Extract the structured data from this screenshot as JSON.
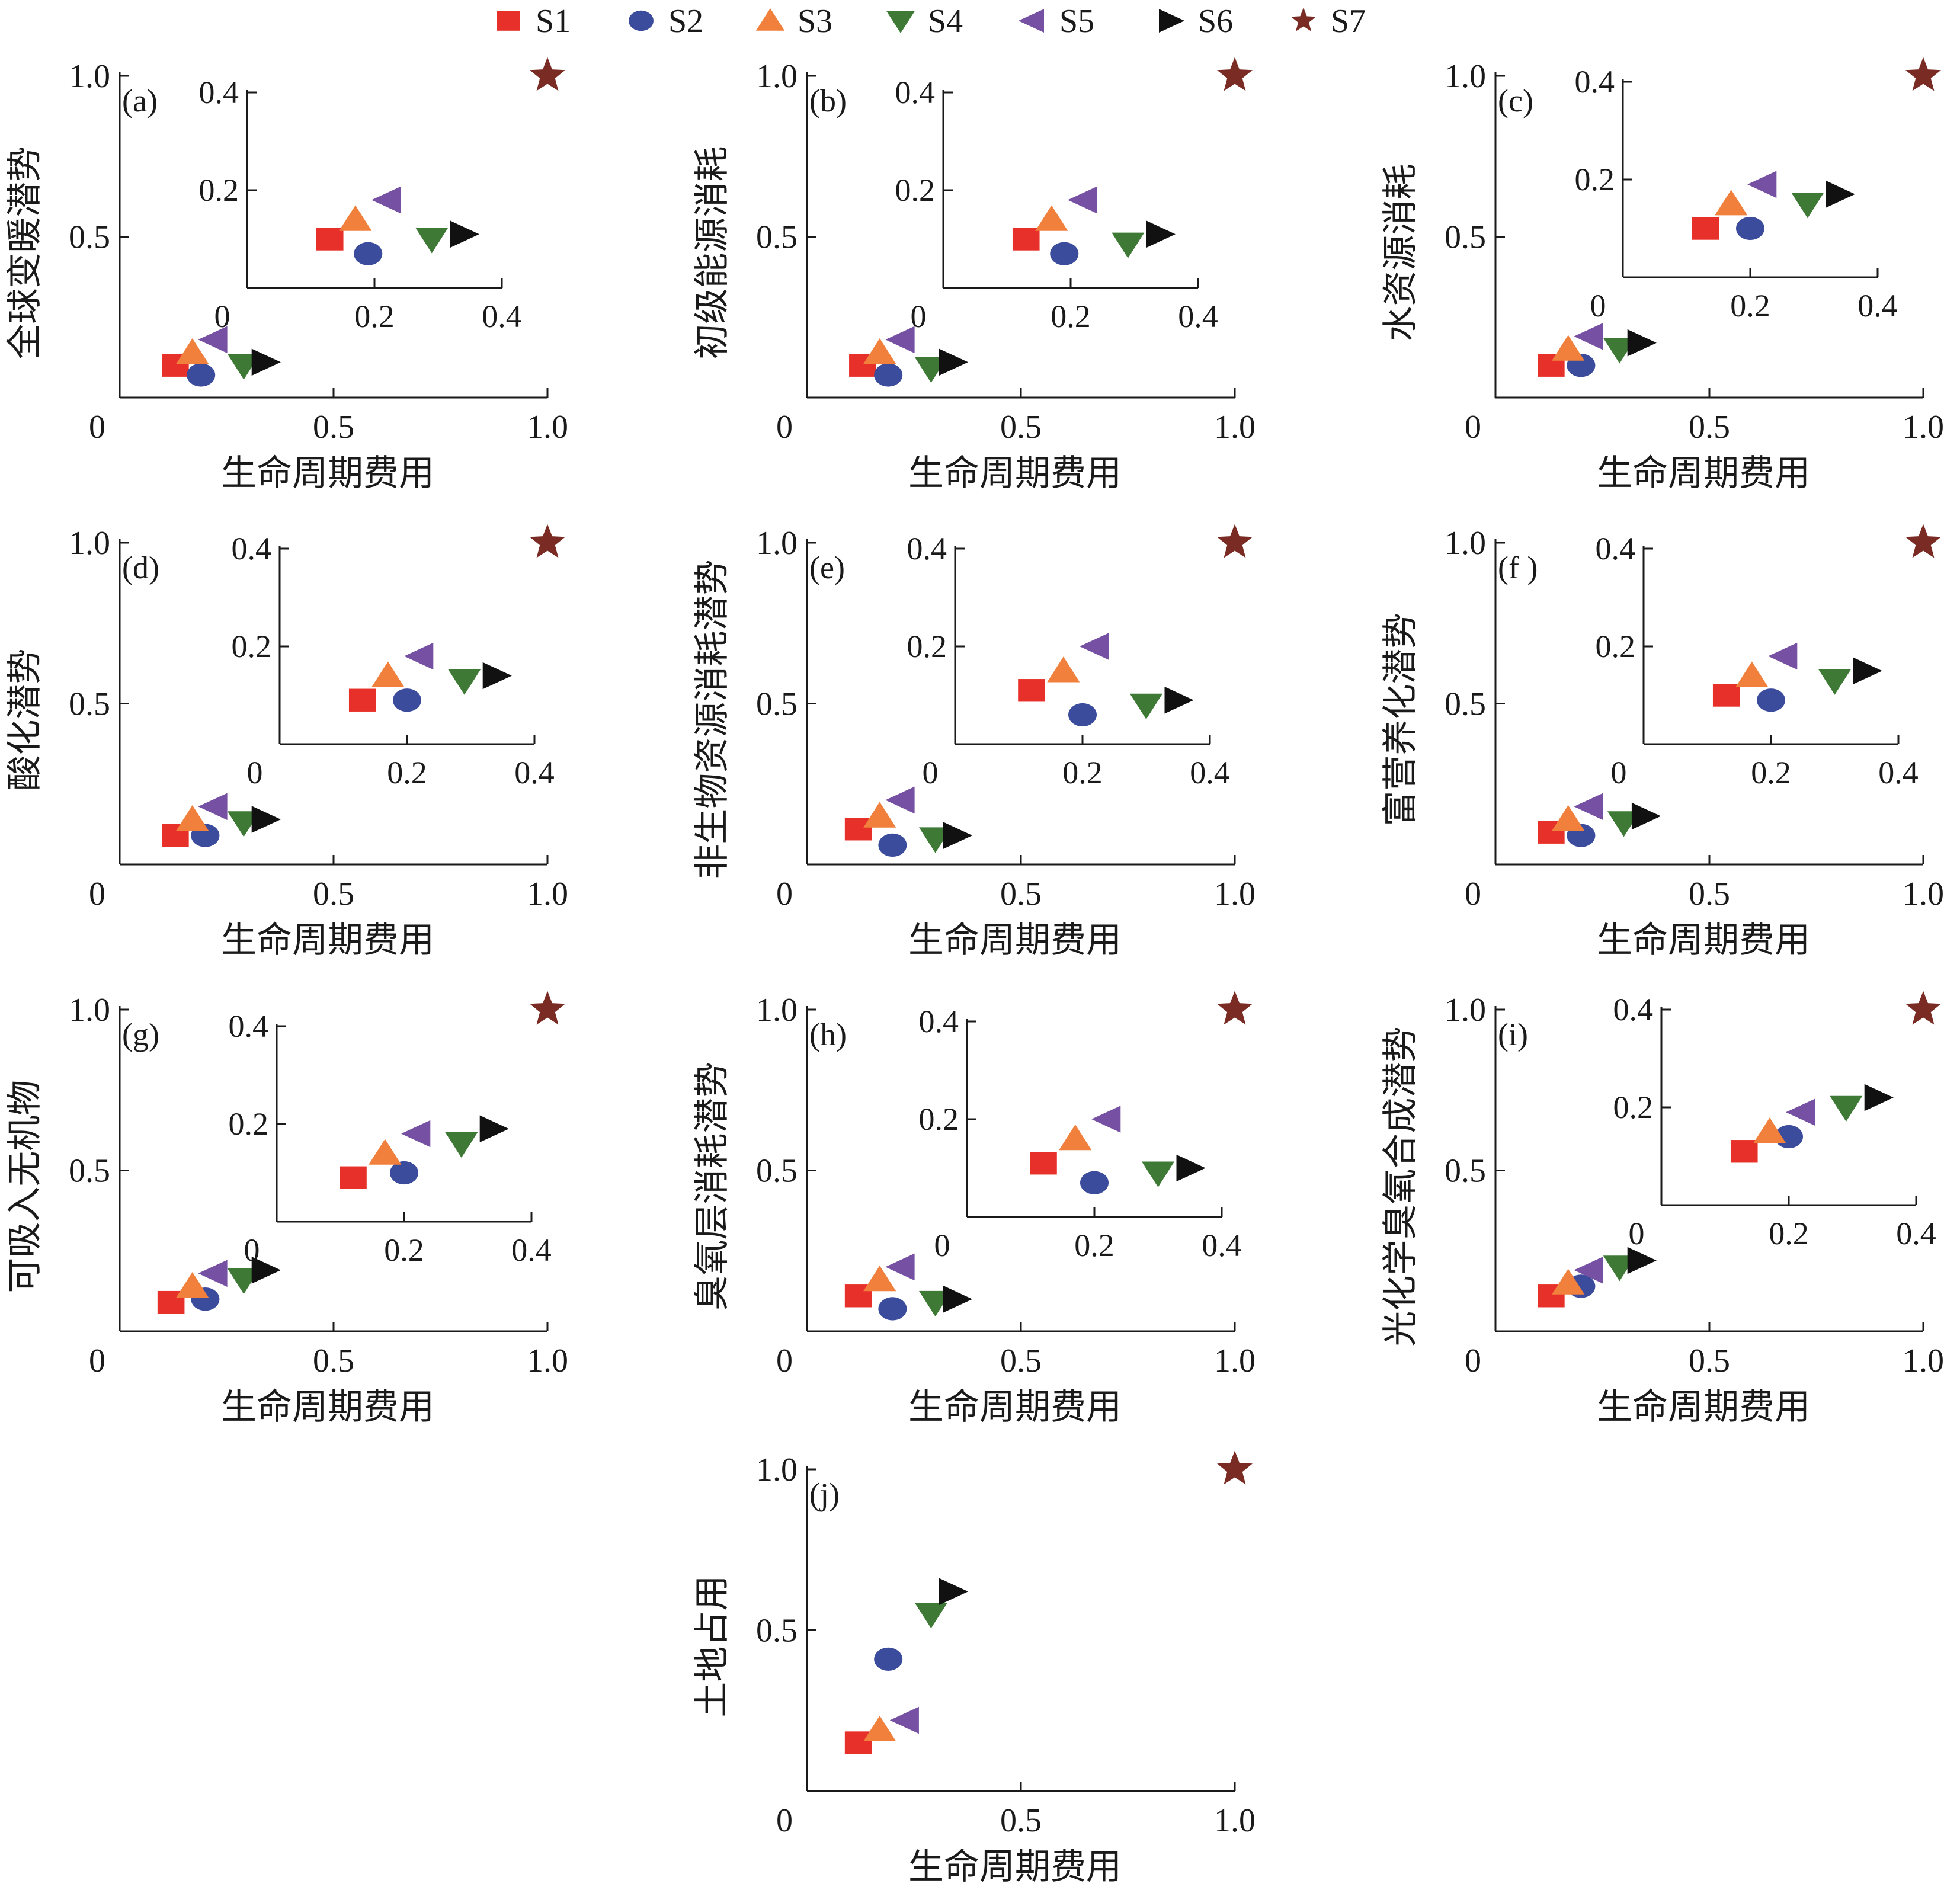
{
  "figure": {
    "series_styles": [
      {
        "name": "S1",
        "marker": "square",
        "color": "#e8302a"
      },
      {
        "name": "S2",
        "marker": "circle",
        "color": "#3c4c9c"
      },
      {
        "name": "S3",
        "marker": "triangle-up",
        "color": "#f0803c"
      },
      {
        "name": "S4",
        "marker": "triangle-down",
        "color": "#3e7a36"
      },
      {
        "name": "S5",
        "marker": "triangle-left",
        "color": "#7650a2"
      },
      {
        "name": "S6",
        "marker": "triangle-right",
        "color": "#111111"
      },
      {
        "name": "S7",
        "marker": "star",
        "color": "#7a2c24"
      }
    ],
    "legend_position": "top-center",
    "axis_color": "#1a1a1a"
  },
  "chart_data": [
    {
      "id": "a",
      "type": "scatter",
      "panel_label": "(a)",
      "xlabel": "生命周期费用",
      "ylabel": "全球变暖潜势",
      "xlim": [
        0,
        1.0
      ],
      "ylim": [
        0,
        1.0
      ],
      "xticks": [
        "0",
        "0.5",
        "1.0"
      ],
      "yticks": [
        "0.5",
        "1.0"
      ],
      "points": [
        {
          "series": "S1",
          "x": 0.13,
          "y": 0.1
        },
        {
          "series": "S2",
          "x": 0.19,
          "y": 0.07
        },
        {
          "series": "S3",
          "x": 0.17,
          "y": 0.14
        },
        {
          "series": "S4",
          "x": 0.29,
          "y": 0.1
        },
        {
          "series": "S5",
          "x": 0.22,
          "y": 0.18
        },
        {
          "series": "S6",
          "x": 0.34,
          "y": 0.11
        },
        {
          "series": "S7",
          "x": 1.0,
          "y": 1.0
        }
      ],
      "inset": {
        "xlim": [
          0,
          0.4
        ],
        "ylim": [
          0,
          0.4
        ],
        "xticks": [
          "0",
          "0.2",
          "0.4"
        ],
        "yticks": [
          "0.2",
          "0.4"
        ]
      }
    },
    {
      "id": "b",
      "type": "scatter",
      "panel_label": "(b)",
      "xlabel": "生命周期费用",
      "ylabel": "初级能源消耗",
      "xlim": [
        0,
        1.0
      ],
      "ylim": [
        0,
        1.0
      ],
      "xticks": [
        "0",
        "0.5",
        "1.0"
      ],
      "yticks": [
        "0.5",
        "1.0"
      ],
      "points": [
        {
          "series": "S1",
          "x": 0.13,
          "y": 0.1
        },
        {
          "series": "S2",
          "x": 0.19,
          "y": 0.07
        },
        {
          "series": "S3",
          "x": 0.17,
          "y": 0.14
        },
        {
          "series": "S4",
          "x": 0.29,
          "y": 0.09
        },
        {
          "series": "S5",
          "x": 0.22,
          "y": 0.18
        },
        {
          "series": "S6",
          "x": 0.34,
          "y": 0.11
        },
        {
          "series": "S7",
          "x": 1.0,
          "y": 1.0
        }
      ],
      "inset": {
        "xlim": [
          0,
          0.4
        ],
        "ylim": [
          0,
          0.4
        ],
        "xticks": [
          "0",
          "0.2",
          "0.4"
        ],
        "yticks": [
          "0.2",
          "0.4"
        ]
      }
    },
    {
      "id": "c",
      "type": "scatter",
      "panel_label": "(c)",
      "xlabel": "生命周期费用",
      "ylabel": "水资源消耗",
      "xlim": [
        0,
        1.0
      ],
      "ylim": [
        0,
        1.0
      ],
      "xticks": [
        "0",
        "0.5",
        "1.0"
      ],
      "yticks": [
        "0.5",
        "1.0"
      ],
      "points": [
        {
          "series": "S1",
          "x": 0.13,
          "y": 0.1
        },
        {
          "series": "S2",
          "x": 0.2,
          "y": 0.1
        },
        {
          "series": "S3",
          "x": 0.17,
          "y": 0.15
        },
        {
          "series": "S4",
          "x": 0.29,
          "y": 0.15
        },
        {
          "series": "S5",
          "x": 0.22,
          "y": 0.19
        },
        {
          "series": "S6",
          "x": 0.34,
          "y": 0.17
        },
        {
          "series": "S7",
          "x": 1.0,
          "y": 1.0
        }
      ],
      "inset": {
        "xlim": [
          0,
          0.4
        ],
        "ylim": [
          0,
          0.4
        ],
        "xticks": [
          "0",
          "0.2",
          "0.4"
        ],
        "yticks": [
          "0.2",
          "0.4"
        ]
      }
    },
    {
      "id": "d",
      "type": "scatter",
      "panel_label": "(d)",
      "xlabel": "生命周期费用",
      "ylabel": "酸化潜势",
      "xlim": [
        0,
        1.0
      ],
      "ylim": [
        0,
        1.0
      ],
      "xticks": [
        "0",
        "0.5",
        "1.0"
      ],
      "yticks": [
        "0.5",
        "1.0"
      ],
      "points": [
        {
          "series": "S1",
          "x": 0.13,
          "y": 0.09
        },
        {
          "series": "S2",
          "x": 0.2,
          "y": 0.09
        },
        {
          "series": "S3",
          "x": 0.17,
          "y": 0.14
        },
        {
          "series": "S4",
          "x": 0.29,
          "y": 0.13
        },
        {
          "series": "S5",
          "x": 0.22,
          "y": 0.18
        },
        {
          "series": "S6",
          "x": 0.34,
          "y": 0.14
        },
        {
          "series": "S7",
          "x": 1.0,
          "y": 1.0
        }
      ],
      "inset": {
        "xlim": [
          0,
          0.4
        ],
        "ylim": [
          0,
          0.4
        ],
        "xticks": [
          "0",
          "0.2",
          "0.4"
        ],
        "yticks": [
          "0.2",
          "0.4"
        ]
      }
    },
    {
      "id": "e",
      "type": "scatter",
      "panel_label": "(e)",
      "xlabel": "生命周期费用",
      "ylabel": "非生物资源消耗潜势",
      "xlim": [
        0,
        1.0
      ],
      "ylim": [
        0,
        1.0
      ],
      "xticks": [
        "0",
        "0.5",
        "1.0"
      ],
      "yticks": [
        "0.5",
        "1.0"
      ],
      "points": [
        {
          "series": "S1",
          "x": 0.12,
          "y": 0.11
        },
        {
          "series": "S2",
          "x": 0.2,
          "y": 0.06
        },
        {
          "series": "S3",
          "x": 0.17,
          "y": 0.15
        },
        {
          "series": "S4",
          "x": 0.3,
          "y": 0.08
        },
        {
          "series": "S5",
          "x": 0.22,
          "y": 0.2
        },
        {
          "series": "S6",
          "x": 0.35,
          "y": 0.09
        },
        {
          "series": "S7",
          "x": 1.0,
          "y": 1.0
        }
      ],
      "inset": {
        "xlim": [
          0,
          0.4
        ],
        "ylim": [
          0,
          0.4
        ],
        "xticks": [
          "0",
          "0.2",
          "0.4"
        ],
        "yticks": [
          "0.2",
          "0.4"
        ]
      }
    },
    {
      "id": "f",
      "type": "scatter",
      "panel_label": "(f )",
      "xlabel": "生命周期费用",
      "ylabel": "富营养化潜势",
      "xlim": [
        0,
        1.0
      ],
      "ylim": [
        0,
        1.0
      ],
      "xticks": [
        "0",
        "0.5",
        "1.0"
      ],
      "yticks": [
        "0.5",
        "1.0"
      ],
      "points": [
        {
          "series": "S1",
          "x": 0.13,
          "y": 0.1
        },
        {
          "series": "S2",
          "x": 0.2,
          "y": 0.09
        },
        {
          "series": "S3",
          "x": 0.17,
          "y": 0.14
        },
        {
          "series": "S4",
          "x": 0.3,
          "y": 0.13
        },
        {
          "series": "S5",
          "x": 0.22,
          "y": 0.18
        },
        {
          "series": "S6",
          "x": 0.35,
          "y": 0.15
        },
        {
          "series": "S7",
          "x": 1.0,
          "y": 1.0
        }
      ],
      "inset": {
        "xlim": [
          0,
          0.4
        ],
        "ylim": [
          0,
          0.4
        ],
        "xticks": [
          "0",
          "0.2",
          "0.4"
        ],
        "yticks": [
          "0.2",
          "0.4"
        ]
      }
    },
    {
      "id": "g",
      "type": "scatter",
      "panel_label": "(g)",
      "xlabel": "生命周期费用",
      "ylabel": "可吸入无机物",
      "xlim": [
        0,
        1.0
      ],
      "ylim": [
        0,
        1.0
      ],
      "xticks": [
        "0",
        "0.5",
        "1.0"
      ],
      "yticks": [
        "0.5",
        "1.0"
      ],
      "points": [
        {
          "series": "S1",
          "x": 0.12,
          "y": 0.09
        },
        {
          "series": "S2",
          "x": 0.2,
          "y": 0.1
        },
        {
          "series": "S3",
          "x": 0.17,
          "y": 0.14
        },
        {
          "series": "S4",
          "x": 0.29,
          "y": 0.16
        },
        {
          "series": "S5",
          "x": 0.22,
          "y": 0.18
        },
        {
          "series": "S6",
          "x": 0.34,
          "y": 0.19
        },
        {
          "series": "S7",
          "x": 1.0,
          "y": 1.0
        }
      ],
      "inset": {
        "xlim": [
          0,
          0.4
        ],
        "ylim": [
          0,
          0.4
        ],
        "xticks": [
          "0",
          "0.2",
          "0.4"
        ],
        "yticks": [
          "0.2",
          "0.4"
        ]
      }
    },
    {
      "id": "h",
      "type": "scatter",
      "panel_label": "(h)",
      "xlabel": "生命周期费用",
      "ylabel": "臭氧层消耗潜势",
      "xlim": [
        0,
        1.0
      ],
      "ylim": [
        0,
        1.0
      ],
      "xticks": [
        "0",
        "0.5",
        "1.0"
      ],
      "yticks": [
        "0.5",
        "1.0"
      ],
      "points": [
        {
          "series": "S1",
          "x": 0.12,
          "y": 0.11
        },
        {
          "series": "S2",
          "x": 0.2,
          "y": 0.07
        },
        {
          "series": "S3",
          "x": 0.17,
          "y": 0.16
        },
        {
          "series": "S4",
          "x": 0.3,
          "y": 0.09
        },
        {
          "series": "S5",
          "x": 0.22,
          "y": 0.2
        },
        {
          "series": "S6",
          "x": 0.35,
          "y": 0.1
        },
        {
          "series": "S7",
          "x": 1.0,
          "y": 1.0
        }
      ],
      "inset": {
        "xlim": [
          0,
          0.4
        ],
        "ylim": [
          0,
          0.4
        ],
        "xticks": [
          "0",
          "0.2",
          "0.4"
        ],
        "yticks": [
          "0.2",
          "0.4"
        ]
      }
    },
    {
      "id": "i",
      "type": "scatter",
      "panel_label": "(i)",
      "xlabel": "生命周期费用",
      "ylabel": "光化学臭氧合成潜势",
      "xlim": [
        0,
        1.0
      ],
      "ylim": [
        0,
        1.0
      ],
      "xticks": [
        "0",
        "0.5",
        "1.0"
      ],
      "yticks": [
        "0.5",
        "1.0"
      ],
      "points": [
        {
          "series": "S1",
          "x": 0.13,
          "y": 0.11
        },
        {
          "series": "S2",
          "x": 0.2,
          "y": 0.14
        },
        {
          "series": "S3",
          "x": 0.17,
          "y": 0.15
        },
        {
          "series": "S4",
          "x": 0.29,
          "y": 0.2
        },
        {
          "series": "S5",
          "x": 0.22,
          "y": 0.19
        },
        {
          "series": "S6",
          "x": 0.34,
          "y": 0.22
        },
        {
          "series": "S7",
          "x": 1.0,
          "y": 1.0
        }
      ],
      "inset": {
        "xlim": [
          0,
          0.4
        ],
        "ylim": [
          0,
          0.4
        ],
        "xticks": [
          "0",
          "0.2",
          "0.4"
        ],
        "yticks": [
          "0.2",
          "0.4"
        ]
      }
    },
    {
      "id": "j",
      "type": "scatter",
      "panel_label": "(j)",
      "xlabel": "生命周期费用",
      "ylabel": "土地占用",
      "xlim": [
        0,
        1.0
      ],
      "ylim": [
        0,
        1.0
      ],
      "xticks": [
        "0",
        "0.5",
        "1.0"
      ],
      "yticks": [
        "0.5",
        "1.0"
      ],
      "points": [
        {
          "series": "S1",
          "x": 0.12,
          "y": 0.15
        },
        {
          "series": "S2",
          "x": 0.19,
          "y": 0.41
        },
        {
          "series": "S3",
          "x": 0.17,
          "y": 0.19
        },
        {
          "series": "S4",
          "x": 0.29,
          "y": 0.55
        },
        {
          "series": "S5",
          "x": 0.23,
          "y": 0.22
        },
        {
          "series": "S6",
          "x": 0.34,
          "y": 0.62
        },
        {
          "series": "S7",
          "x": 1.0,
          "y": 1.0
        }
      ],
      "inset": null
    }
  ]
}
